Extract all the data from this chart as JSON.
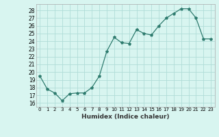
{
  "x": [
    0,
    1,
    2,
    3,
    4,
    5,
    6,
    7,
    8,
    9,
    10,
    11,
    12,
    13,
    14,
    15,
    16,
    17,
    18,
    19,
    20,
    21,
    22,
    23
  ],
  "y": [
    19.5,
    17.8,
    17.3,
    16.3,
    17.2,
    17.3,
    17.3,
    18.0,
    19.5,
    22.7,
    24.5,
    23.8,
    23.7,
    25.5,
    25.0,
    24.8,
    26.0,
    27.0,
    27.6,
    28.2,
    28.2,
    27.0,
    24.3,
    24.3
  ],
  "line_color": "#2e7b6e",
  "marker": "*",
  "marker_size": 3,
  "bg_color": "#d8f5f0",
  "grid_color": "#b0ddd8",
  "xlabel": "Humidex (Indice chaleur)",
  "ylabel_ticks": [
    16,
    17,
    18,
    19,
    20,
    21,
    22,
    23,
    24,
    25,
    26,
    27,
    28
  ],
  "ylim": [
    15.5,
    28.8
  ],
  "xlim": [
    -0.5,
    23.5
  ],
  "xtick_labels": [
    "0",
    "1",
    "2",
    "3",
    "4",
    "5",
    "6",
    "7",
    "8",
    "9",
    "10",
    "11",
    "12",
    "13",
    "14",
    "15",
    "16",
    "17",
    "18",
    "19",
    "20",
    "21",
    "22",
    "23"
  ]
}
